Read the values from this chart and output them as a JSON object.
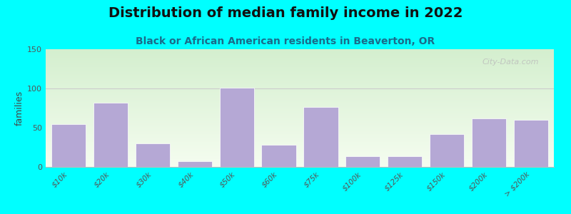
{
  "title": "Distribution of median family income in 2022",
  "subtitle": "Black or African American residents in Beaverton, OR",
  "categories": [
    "$10k",
    "$20k",
    "$30k",
    "$40k",
    "$50k",
    "$60k",
    "$75k",
    "$100k",
    "$125k",
    "$150k",
    "$200k",
    "> $200k"
  ],
  "values": [
    55,
    82,
    30,
    7,
    101,
    28,
    76,
    14,
    14,
    42,
    62,
    60
  ],
  "bar_color": "#b5a8d5",
  "background_outer": "#00ffff",
  "ylabel": "families",
  "ylim": [
    0,
    150
  ],
  "yticks": [
    0,
    50,
    100,
    150
  ],
  "title_fontsize": 14,
  "subtitle_fontsize": 10,
  "watermark": "City-Data.com"
}
